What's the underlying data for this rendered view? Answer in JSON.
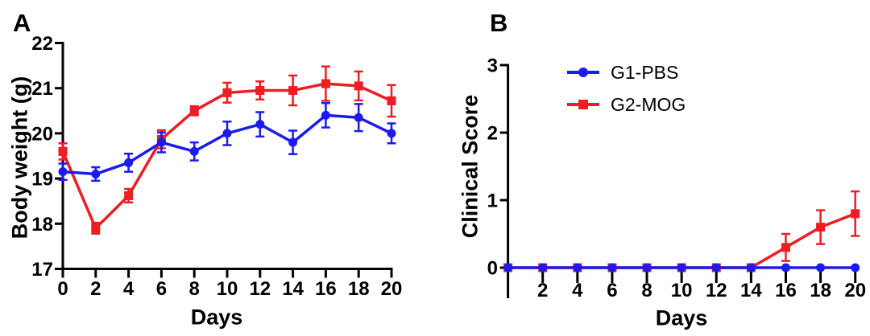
{
  "figure": {
    "panels": [
      {
        "label": "A",
        "xlabel": "Days",
        "ylabel": "Body weight (g)"
      },
      {
        "label": "B",
        "xlabel": "Days",
        "ylabel": "Clinical Score"
      }
    ],
    "colors": {
      "g1_pbs": "#1b1bef",
      "g2_mog": "#ee1c23",
      "axis": "#000000"
    }
  },
  "chart_data": [
    {
      "type": "line",
      "title": "",
      "xlabel": "Days",
      "ylabel": "Body weight (g)",
      "x": [
        0,
        2,
        4,
        6,
        8,
        10,
        12,
        14,
        16,
        18,
        20
      ],
      "xlim": [
        0,
        20
      ],
      "ylim": [
        17,
        22
      ],
      "xticks": [
        0,
        2,
        4,
        6,
        8,
        10,
        12,
        14,
        16,
        18,
        20
      ],
      "yticks": [
        17,
        18,
        19,
        20,
        21,
        22
      ],
      "grid": false,
      "legend_position": "none",
      "series": [
        {
          "name": "G1-PBS",
          "color": "#1b1bef",
          "marker": "circle",
          "values": [
            19.15,
            19.1,
            19.35,
            19.8,
            19.6,
            20.0,
            20.2,
            19.8,
            20.4,
            20.35,
            20.0
          ],
          "errors": [
            0.18,
            0.15,
            0.2,
            0.22,
            0.2,
            0.26,
            0.27,
            0.26,
            0.27,
            0.3,
            0.22
          ]
        },
        {
          "name": "G2-MOG",
          "color": "#ee1c23",
          "marker": "square",
          "values": [
            19.6,
            17.9,
            18.62,
            19.87,
            20.5,
            20.9,
            20.95,
            20.95,
            21.1,
            21.05,
            20.72
          ],
          "errors": [
            0.18,
            0.12,
            0.15,
            0.2,
            0.1,
            0.22,
            0.2,
            0.33,
            0.38,
            0.32,
            0.35
          ]
        }
      ]
    },
    {
      "type": "line",
      "title": "",
      "xlabel": "Days",
      "ylabel": "Clinical Score",
      "x": [
        0,
        2,
        4,
        6,
        8,
        10,
        12,
        14,
        16,
        18,
        20
      ],
      "xlim": [
        0,
        20
      ],
      "ylim": [
        0,
        3
      ],
      "xticks": [
        2,
        4,
        6,
        8,
        10,
        12,
        14,
        16,
        18,
        20
      ],
      "yticks": [
        0,
        1,
        2,
        3
      ],
      "grid": false,
      "legend_position": "inside-top-left",
      "series": [
        {
          "name": "G1-PBS",
          "color": "#1b1bef",
          "marker": "circle",
          "values": [
            0,
            0,
            0,
            0,
            0,
            0,
            0,
            0,
            0,
            0,
            0
          ],
          "errors": [
            0,
            0,
            0,
            0,
            0,
            0,
            0,
            0,
            0,
            0,
            0
          ]
        },
        {
          "name": "G2-MOG",
          "color": "#ee1c23",
          "marker": "square",
          "values": [
            0,
            0,
            0,
            0,
            0,
            0,
            0,
            0,
            0.3,
            0.6,
            0.8
          ],
          "errors": [
            0,
            0,
            0,
            0,
            0,
            0,
            0,
            0,
            0.2,
            0.25,
            0.33
          ]
        }
      ]
    }
  ]
}
